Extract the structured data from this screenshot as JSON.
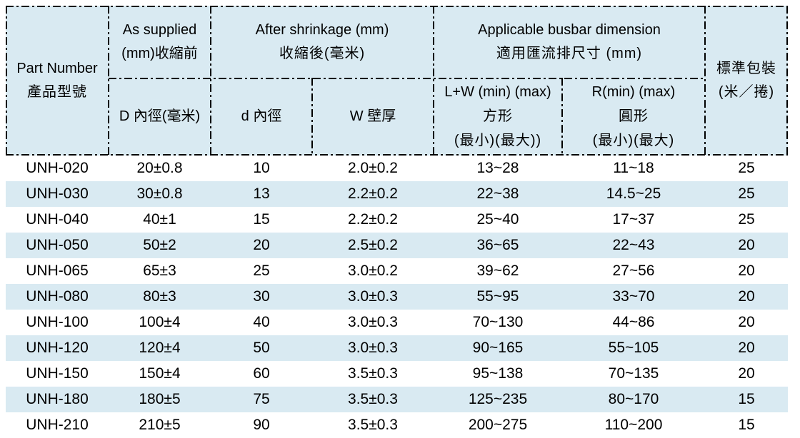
{
  "colors": {
    "header_bg": "#d9eaf2",
    "stripe_bg": "#d9eaf2",
    "border": "#000000",
    "text": "#000000"
  },
  "header": {
    "part_number": {
      "en": "Part Number",
      "zh": "產品型號"
    },
    "as_supplied": {
      "line1": "As supplied",
      "line2": "(mm)收縮前",
      "sub_d": "D 內徑(毫米)"
    },
    "after_shrinkage": {
      "line1": "After shrinkage (mm)",
      "line2": "收縮後(毫米)",
      "sub_d": "d  內徑",
      "sub_w": "W  壁厚"
    },
    "busbar": {
      "line1": "Applicable busbar dimension",
      "line2": "適用匯流排尺寸 (mm)",
      "lw": {
        "l1": "L+W (min) (max)",
        "l2": "方形",
        "l3": "(最小)(最大))"
      },
      "r": {
        "l1": "R(min) (max)",
        "l2": "圓形",
        "l3": "(最小)(最大)"
      }
    },
    "packaging": {
      "line1": "標準包裝",
      "line2": "(米／捲)"
    }
  },
  "columns": [
    "part-number",
    "inner-dia-as-supplied",
    "inner-dia-after-shrinkage",
    "wall-thickness",
    "lw-square-range",
    "r-round-range",
    "packaging"
  ],
  "rows": [
    [
      "UNH-020",
      "20±0.8",
      "10",
      "2.0±0.2",
      "13~28",
      "11~18",
      "25"
    ],
    [
      "UNH-030",
      "30±0.8",
      "13",
      "2.2±0.2",
      "22~38",
      "14.5~25",
      "25"
    ],
    [
      "UNH-040",
      "40±1",
      "15",
      "2.2±0.2",
      "25~40",
      "17~37",
      "25"
    ],
    [
      "UNH-050",
      "50±2",
      "20",
      "2.5±0.2",
      "36~65",
      "22~43",
      "20"
    ],
    [
      "UNH-065",
      "65±3",
      "25",
      "3.0±0.2",
      "39~62",
      "27~56",
      "20"
    ],
    [
      "UNH-080",
      "80±3",
      "30",
      "3.0±0.3",
      "55~95",
      "33~70",
      "20"
    ],
    [
      "UNH-100",
      "100±4",
      "40",
      "3.0±0.3",
      "70~130",
      "44~86",
      "20"
    ],
    [
      "UNH-120",
      "120±4",
      "50",
      "3.0±0.3",
      "90~165",
      "55~105",
      "20"
    ],
    [
      "UNH-150",
      "150±4",
      "60",
      "3.5±0.3",
      "95~138",
      "70~135",
      "20"
    ],
    [
      "UNH-180",
      "180±5",
      "75",
      "3.5±0.3",
      "125~235",
      "80~170",
      "15"
    ],
    [
      "UNH-210",
      "210±5",
      "90",
      "3.5±0.3",
      "200~275",
      "110~200",
      "15"
    ]
  ]
}
